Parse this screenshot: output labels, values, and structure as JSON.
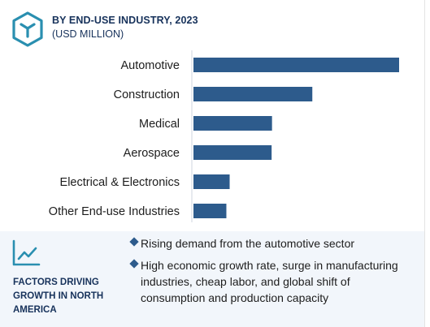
{
  "header": {
    "title": "BY END-USE INDUSTRY, 2023",
    "subtitle": "(USD MILLION)"
  },
  "chart_data": {
    "type": "bar",
    "orientation": "horizontal",
    "categories": [
      "Automotive",
      "Construction",
      "Medical",
      "Aerospace",
      "Electrical & Electronics",
      "Other End-use Industries"
    ],
    "values": [
      100,
      57.8,
      38.2,
      38.0,
      17.6,
      16.0
    ],
    "xlim": [
      0,
      100
    ],
    "grid": false,
    "bar_color": "#2d5b8c"
  },
  "footer": {
    "heading": "FACTORS DRIVING GROWTH IN NORTH AMERICA",
    "factors": [
      "Rising demand from the automotive sector",
      "High economic growth rate, surge in manufacturing industries, cheap labor, and global shift of consumption and production capacity"
    ]
  },
  "colors": {
    "accent": "#2a8fb0",
    "title": "#17325b",
    "bar": "#2d5b8c",
    "footer_bg": "#f2f6fb"
  },
  "icons": [
    "hexagon-cube-logo-icon",
    "trend-line-icon",
    "diamond-bullet-icon"
  ]
}
